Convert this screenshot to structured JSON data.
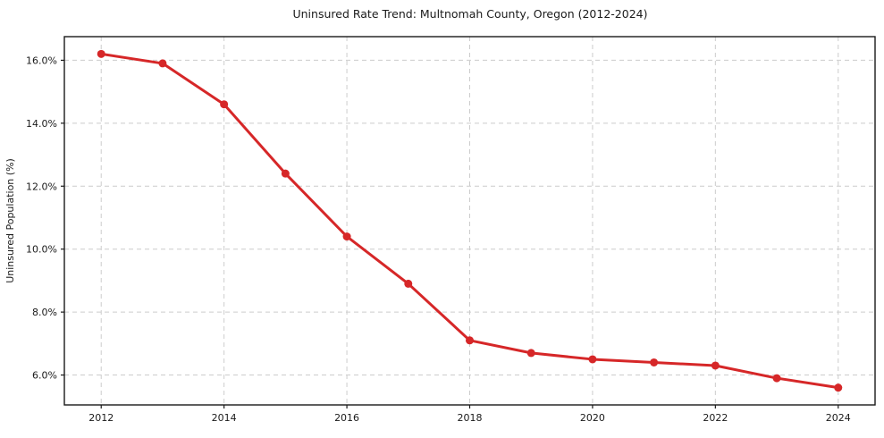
{
  "chart_data": {
    "type": "line",
    "title": "Uninsured Rate Trend: Multnomah County, Oregon (2012-2024)",
    "xlabel": "",
    "ylabel": "Uninsured Population (%)",
    "x": [
      2012,
      2013,
      2014,
      2015,
      2016,
      2017,
      2018,
      2019,
      2020,
      2021,
      2022,
      2023,
      2024
    ],
    "values": [
      16.2,
      15.9,
      14.6,
      12.4,
      10.4,
      8.9,
      7.1,
      6.7,
      6.5,
      6.4,
      6.3,
      5.9,
      5.6
    ],
    "x_ticks": [
      2012,
      2014,
      2016,
      2018,
      2020,
      2022,
      2024
    ],
    "y_ticks": [
      6.0,
      8.0,
      10.0,
      12.0,
      14.0,
      16.0
    ],
    "y_tick_suffix": "%",
    "xlim": [
      2011.4,
      2024.6
    ],
    "ylim": [
      5.05,
      16.75
    ],
    "grid": true,
    "legend": false,
    "line_color": "#d62728",
    "marker": "circle",
    "grid_color": "#cccccc",
    "spine_color": "#1a1a1a",
    "background_color": "#ffffff"
  }
}
